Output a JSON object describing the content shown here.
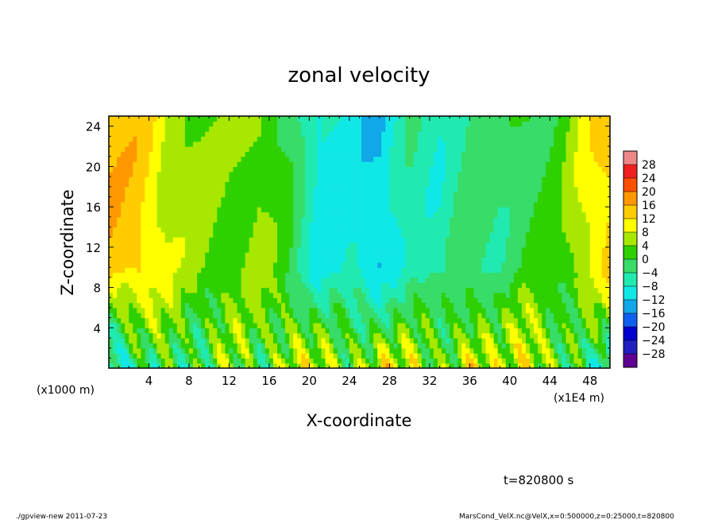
{
  "chart_data": {
    "type": "heatmap",
    "title": "zonal velocity",
    "xlabel": "X-coordinate",
    "ylabel": "Z-coordinate",
    "x_unit_label": "(x1E4 m)",
    "y_unit_label": "(x1000 m)",
    "x_ticks": [
      "4",
      "8",
      "12",
      "16",
      "20",
      "24",
      "28",
      "32",
      "36",
      "40",
      "44",
      "48"
    ],
    "y_ticks": [
      "4",
      "8",
      "12",
      "16",
      "20",
      "24"
    ],
    "xlim": [
      0,
      50
    ],
    "ylim": [
      0,
      25
    ],
    "colorbar": {
      "levels": [
        "28",
        "24",
        "20",
        "16",
        "12",
        "8",
        "4",
        "0",
        "−4",
        "−8",
        "−12",
        "−16",
        "−20",
        "−24",
        "−28"
      ],
      "colors": [
        "#ee8888",
        "#ee2020",
        "#ff5000",
        "#ff9800",
        "#ffcc00",
        "#ffff00",
        "#a8e800",
        "#2ed000",
        "#38dc68",
        "#20eab0",
        "#10e8e8",
        "#10a8e8",
        "#1060f0",
        "#0000d0",
        "#2020c0",
        "#600090"
      ]
    },
    "field_profile": {
      "x": [
        0,
        3,
        6,
        9,
        12,
        15,
        18,
        21,
        24,
        27,
        30,
        33,
        36,
        39,
        42,
        45,
        48,
        50
      ],
      "upper_value": [
        15,
        14,
        7,
        5,
        3,
        5,
        0,
        -10,
        -9,
        -12,
        -5,
        -7,
        -2,
        -3,
        0,
        2,
        10,
        14
      ],
      "near_surface_value": [
        -10,
        -6,
        2,
        -2,
        4,
        0,
        8,
        6,
        4,
        10,
        6,
        4,
        10,
        4,
        12,
        2,
        -6,
        -10
      ]
    }
  },
  "footer": {
    "time_label": "t=820800 s",
    "program": "./gpview-new   2011-07-23",
    "source": "MarsCond_VelX.nc@VelX,x=0:500000,z=0:25000,t=820800"
  }
}
